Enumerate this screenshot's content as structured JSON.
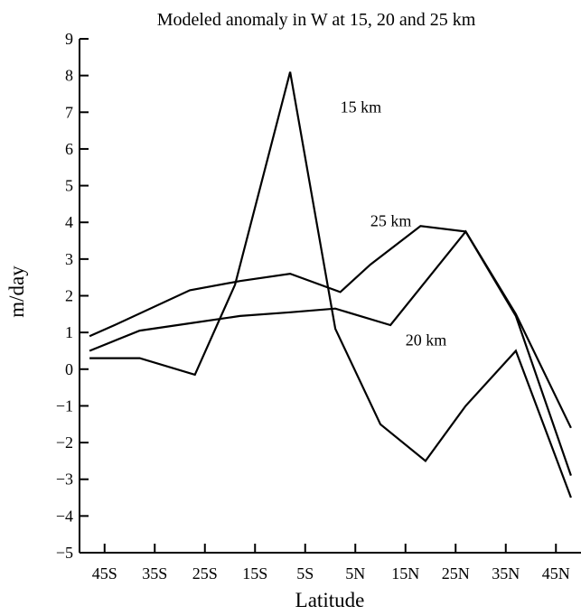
{
  "chart_data": {
    "type": "line",
    "title": "Modeled anomaly in W at 15, 20 and 25 km",
    "xlabel": "Latitude",
    "ylabel": "m/day",
    "x": [
      -48,
      -43,
      -38,
      -33,
      -28,
      -23,
      -18,
      -13,
      -8,
      -3,
      2,
      7,
      12,
      17,
      22,
      27,
      32,
      37,
      42,
      47
    ],
    "xlim": [
      -50,
      50
    ],
    "xticks": [
      -45,
      -35,
      -25,
      -15,
      -5,
      5,
      15,
      25,
      35,
      45
    ],
    "xtick_labels": [
      "45S",
      "35S",
      "25S",
      "15S",
      "5S",
      "5N",
      "15N",
      "25N",
      "35N",
      "45N"
    ],
    "ylim": [
      -5,
      9
    ],
    "yticks": [
      -5,
      -4,
      -3,
      -2,
      -1,
      0,
      1,
      2,
      3,
      4,
      5,
      6,
      7,
      8,
      9
    ],
    "ytick_labels": [
      "−5",
      "−4",
      "−3",
      "−2",
      "−1",
      "0",
      "1",
      "2",
      "3",
      "4",
      "5",
      "6",
      "7",
      "8",
      "9"
    ],
    "grid": false,
    "legend": "none",
    "series": [
      {
        "name": "15 km",
        "color": "#000000",
        "points": [
          [
            -48,
            0.3
          ],
          [
            -38,
            0.3
          ],
          [
            -27,
            -0.15
          ],
          [
            -19,
            2.3
          ],
          [
            -8,
            8.1
          ],
          [
            1,
            1.1
          ],
          [
            10,
            -1.5
          ],
          [
            19,
            -2.5
          ],
          [
            27,
            -1.0
          ],
          [
            37,
            0.5
          ],
          [
            48,
            -3.5
          ]
        ]
      },
      {
        "name": "20 km",
        "color": "#000000",
        "points": [
          [
            -48,
            0.5
          ],
          [
            -38,
            1.05
          ],
          [
            -28,
            1.25
          ],
          [
            -18,
            1.45
          ],
          [
            -8,
            1.55
          ],
          [
            1,
            1.65
          ],
          [
            12,
            1.2
          ],
          [
            27,
            3.75
          ],
          [
            37,
            1.5
          ],
          [
            48,
            -1.6
          ]
        ]
      },
      {
        "name": "25 km",
        "color": "#000000",
        "points": [
          [
            -48,
            0.9
          ],
          [
            -43,
            1.2
          ],
          [
            -28,
            2.15
          ],
          [
            -18,
            2.4
          ],
          [
            -8,
            2.6
          ],
          [
            2,
            2.1
          ],
          [
            8,
            2.85
          ],
          [
            18,
            3.9
          ],
          [
            27,
            3.75
          ],
          [
            37,
            1.45
          ],
          [
            48,
            -2.9
          ]
        ]
      }
    ],
    "annotations": [
      {
        "text": "15 km",
        "series": "15 km",
        "at": [
          2,
          7.0
        ]
      },
      {
        "text": "25 km",
        "series": "25 km",
        "at": [
          8,
          3.9
        ]
      },
      {
        "text": "20 km",
        "series": "20 km",
        "at": [
          15,
          0.65
        ]
      }
    ]
  }
}
